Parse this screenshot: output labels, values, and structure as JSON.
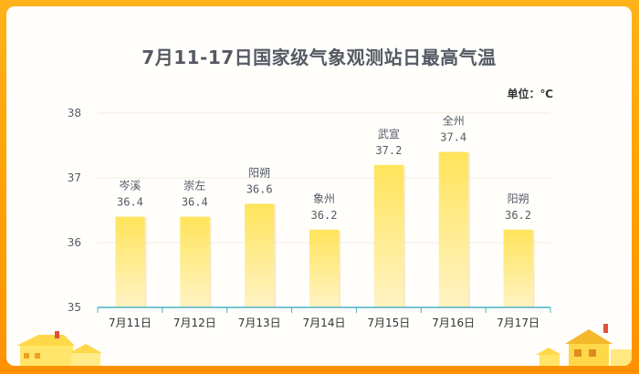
{
  "title": "7月11-17日国家级气象观测站日最高气温",
  "unit_label": "单位：℃",
  "colors": {
    "frame": "#ffa000",
    "bar_top": "#ffe45a",
    "bar_bottom": "#fff3c4",
    "axis": "#48b2c2",
    "text": "#555a64"
  },
  "chart_data": {
    "type": "bar",
    "title": "7月11-17日国家级气象观测站日最高气温",
    "unit": "单位：℃",
    "categories": [
      "7月11日",
      "7月12日",
      "7月13日",
      "7月14日",
      "7月15日",
      "7月16日",
      "7月17日"
    ],
    "stations": [
      "岑溪",
      "崇左",
      "阳朔",
      "象州",
      "武宣",
      "全州",
      "阳朔"
    ],
    "values": [
      36.4,
      36.4,
      36.6,
      36.2,
      37.2,
      37.4,
      36.2
    ],
    "ylim": [
      35,
      38
    ],
    "yticks": [
      35,
      36,
      37,
      38
    ],
    "grid": true,
    "legend": "none"
  }
}
